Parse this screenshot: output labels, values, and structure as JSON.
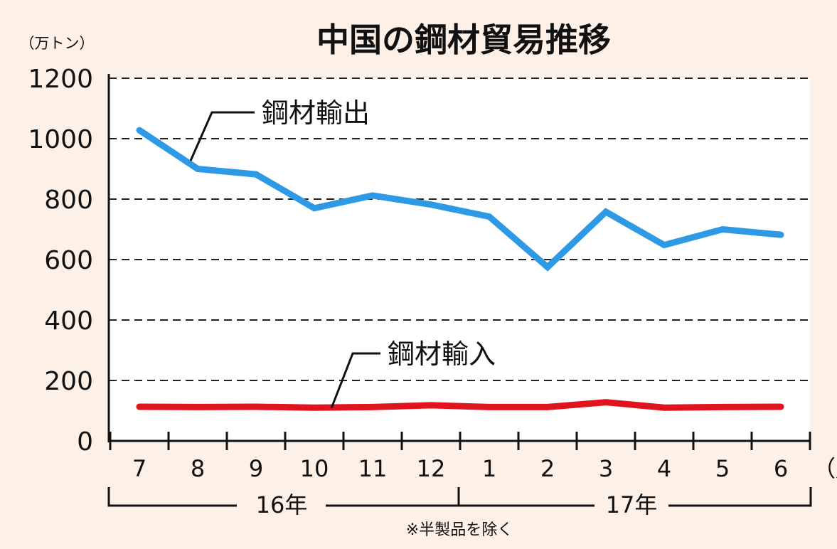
{
  "chart_data": {
    "type": "line",
    "title": "中国の鋼材貿易推移",
    "unit": "（万トン）",
    "x_unit": "（月）",
    "categories": [
      "7",
      "8",
      "9",
      "10",
      "11",
      "12",
      "1",
      "2",
      "3",
      "4",
      "5",
      "6"
    ],
    "years": [
      "16年",
      "17年"
    ],
    "yticks": [
      "1200",
      "1000",
      "800",
      "600",
      "400",
      "200",
      "0"
    ],
    "ylim": [
      0,
      1200
    ],
    "grid": true,
    "note": "※半製品を除く",
    "series": [
      {
        "name": "鋼材輸出",
        "color": "#2e9ae6",
        "values": [
          1028,
          900,
          882,
          770,
          812,
          782,
          742,
          575,
          758,
          648,
          700,
          682
        ]
      },
      {
        "name": "鋼材輸入",
        "color": "#e0141e",
        "values": [
          113,
          112,
          113,
          110,
          112,
          118,
          112,
          112,
          128,
          110,
          112,
          113
        ]
      }
    ]
  }
}
